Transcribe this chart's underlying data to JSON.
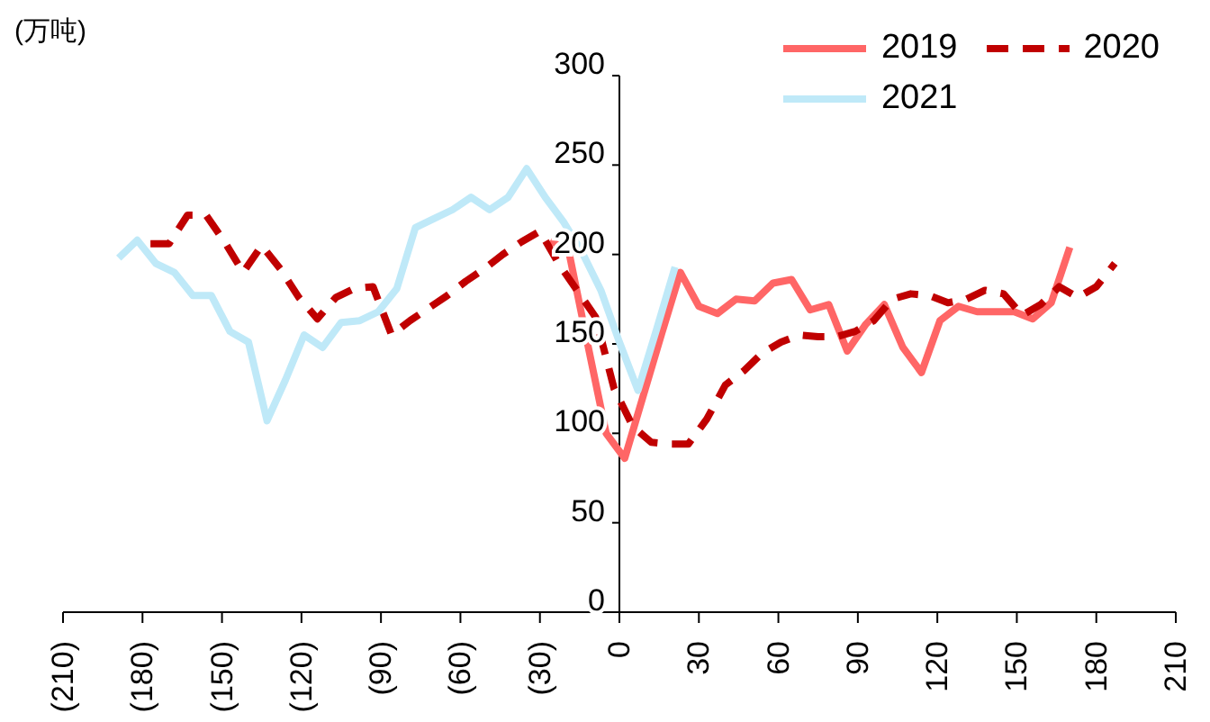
{
  "chart_data": {
    "type": "line",
    "ylabel": "(万吨)",
    "xlim": [
      -210,
      210
    ],
    "xticks": [
      {
        "value": -210,
        "label": "(210)"
      },
      {
        "value": -180,
        "label": "(180)"
      },
      {
        "value": -150,
        "label": "(150)"
      },
      {
        "value": -120,
        "label": "(120)"
      },
      {
        "value": -90,
        "label": "(90)"
      },
      {
        "value": -60,
        "label": "(60)"
      },
      {
        "value": -30,
        "label": "(30)"
      },
      0,
      30,
      60,
      90,
      120,
      150,
      180,
      210
    ],
    "ylim": [
      0,
      300
    ],
    "yticks": [
      0,
      50,
      100,
      150,
      200,
      250,
      300
    ],
    "legend": "top right",
    "marker": "none",
    "series": [
      {
        "name": "2019",
        "color": "#ff6666",
        "line_style": "solid",
        "x": [
          -26,
          -19,
          -12,
          -5,
          2,
          9,
          16,
          23,
          30,
          37,
          44,
          51,
          58,
          65,
          72,
          79,
          86,
          93,
          100,
          107,
          114,
          121,
          128,
          135,
          142,
          149,
          156,
          163,
          170
        ],
        "values": [
          208,
          201,
          150,
          100,
          86,
          121,
          156,
          190,
          171,
          167,
          175,
          174,
          184,
          186,
          169,
          172,
          146,
          161,
          172,
          148,
          134,
          163,
          171,
          168,
          168,
          168,
          164,
          173,
          204
        ]
      },
      {
        "name": "2020",
        "color": "#c00000",
        "line_style": "dashed",
        "x": [
          -177,
          -170,
          -163,
          -156,
          -149,
          -142,
          -135,
          -128,
          -121,
          -114,
          -107,
          -100,
          -93,
          -86,
          -79,
          -72,
          -65,
          -58,
          -51,
          -44,
          -37,
          -30,
          -23,
          -16,
          -9,
          -2,
          5,
          12,
          19,
          26,
          33,
          40,
          47,
          54,
          61,
          68,
          75,
          82,
          89,
          96,
          103,
          110,
          117,
          124,
          131,
          138,
          145,
          152,
          159,
          166,
          173,
          180,
          187
        ],
        "values": [
          206,
          206,
          222,
          222,
          207,
          190,
          205,
          192,
          176,
          164,
          176,
          181,
          182,
          155,
          163,
          170,
          177,
          185,
          192,
          200,
          207,
          213,
          195,
          180,
          165,
          125,
          104,
          95,
          94,
          94,
          108,
          127,
          135,
          145,
          151,
          155,
          154,
          154,
          157,
          163,
          175,
          178,
          177,
          173,
          175,
          180,
          178,
          166,
          172,
          182,
          176,
          182,
          195
        ]
      },
      {
        "name": "2021",
        "color": "#bfe9f8",
        "line_style": "solid",
        "x": [
          -189,
          -182,
          -175,
          -168,
          -161,
          -154,
          -147,
          -140,
          -133,
          -126,
          -119,
          -112,
          -105,
          -98,
          -91,
          -84,
          -77,
          -70,
          -63,
          -56,
          -49,
          -42,
          -35,
          -28,
          -21,
          -14,
          -7,
          0,
          7,
          14,
          21
        ],
        "values": [
          198,
          208,
          195,
          190,
          177,
          177,
          157,
          151,
          107,
          130,
          155,
          148,
          162,
          163,
          168,
          181,
          215,
          220,
          225,
          232,
          225,
          232,
          248,
          232,
          218,
          201,
          180,
          151,
          124,
          158,
          193
        ]
      }
    ]
  }
}
